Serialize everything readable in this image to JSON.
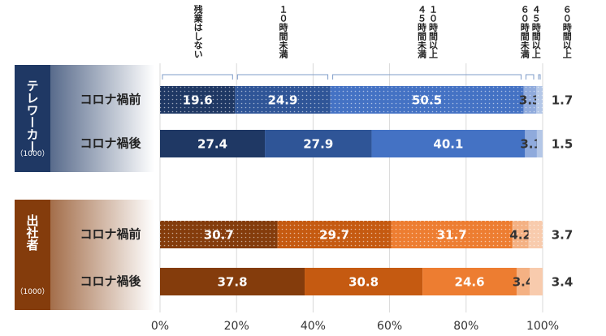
{
  "chart_data": {
    "type": "stacked-bar-horizontal",
    "categories": [
      "コロナ禍前",
      "コロナ禍後",
      "コロナ禍前",
      "コロナ禍後"
    ],
    "groups": [
      {
        "name": "テレワーカー",
        "note": "（1000）"
      },
      {
        "name": "出社者",
        "note": "（1000）"
      }
    ],
    "series": [
      {
        "name": "残業はしない",
        "colors": [
          "#1f3864",
          "#1f3864",
          "#843c0c",
          "#843c0c"
        ],
        "values": [
          19.6,
          27.4,
          30.7,
          37.8
        ]
      },
      {
        "name": "１０時間未満",
        "colors": [
          "#2f5597",
          "#2f5597",
          "#c55a11",
          "#c55a11"
        ],
        "values": [
          24.9,
          27.9,
          29.7,
          30.8
        ]
      },
      {
        "name": "１０時間以上４５時間未満",
        "colors": [
          "#4472c4",
          "#4472c4",
          "#ed7d31",
          "#ed7d31"
        ],
        "values": [
          50.5,
          40.1,
          31.7,
          24.6
        ]
      },
      {
        "name": "４５時間以上６０時間未満",
        "colors": [
          "#8faadc",
          "#8faadc",
          "#f4b183",
          "#f4b183"
        ],
        "values": [
          3.3,
          3.1,
          4.2,
          3.4
        ]
      },
      {
        "name": "６０時間以上",
        "colors": [
          "#b4c7e7",
          "#b4c7e7",
          "#f8cbad",
          "#f8cbad"
        ],
        "values": [
          1.7,
          1.5,
          3.7,
          3.4
        ]
      }
    ],
    "dotted": [
      true,
      false,
      true,
      false
    ],
    "xlim": [
      0,
      100
    ],
    "xticks": [
      {
        "value": 0,
        "label": "0%"
      },
      {
        "value": 20,
        "label": "20%"
      },
      {
        "value": 40,
        "label": "40%"
      },
      {
        "value": 60,
        "label": "60%"
      },
      {
        "value": 80,
        "label": "80%"
      },
      {
        "value": 100,
        "label": "100%"
      }
    ],
    "grid": true
  }
}
